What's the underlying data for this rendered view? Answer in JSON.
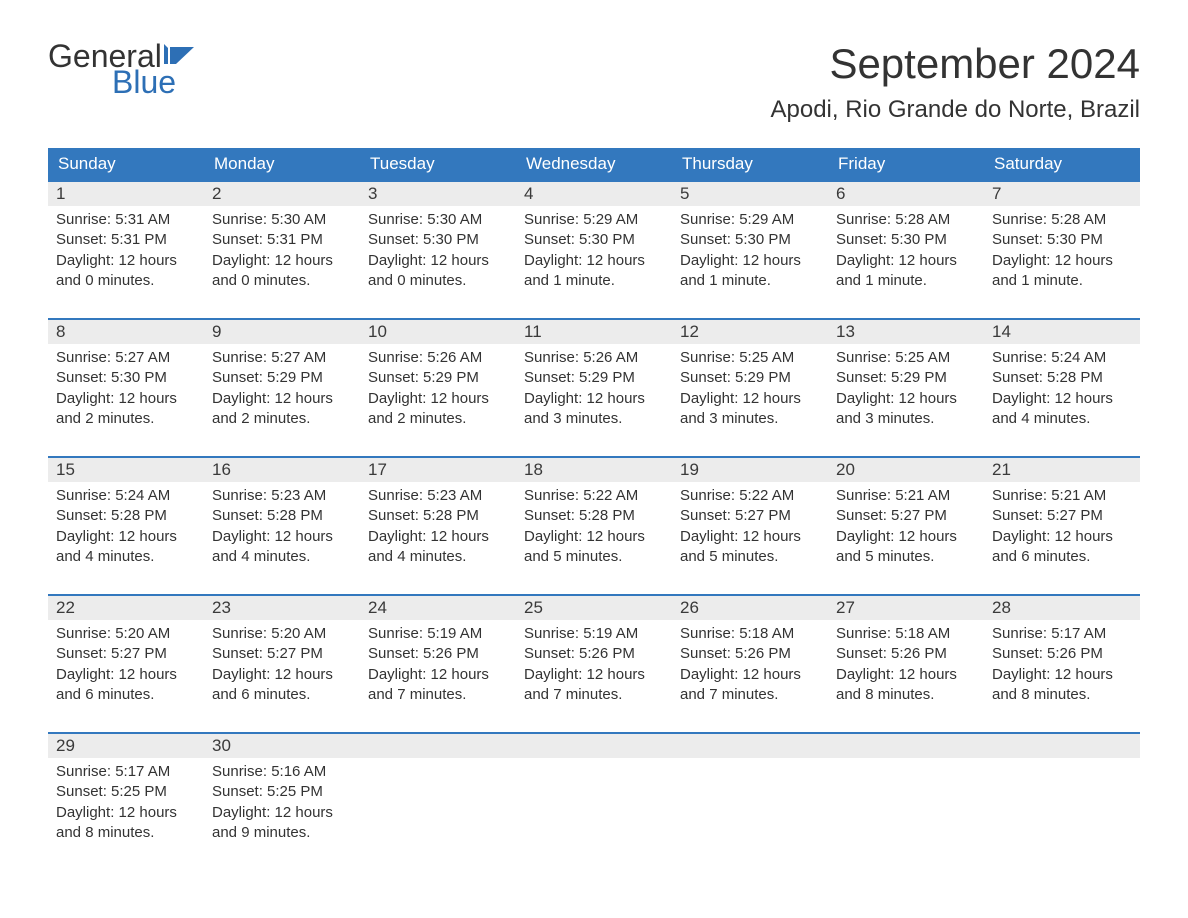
{
  "logo": {
    "text1": "General",
    "text2": "Blue",
    "flag_color": "#2d6fb5"
  },
  "title": "September 2024",
  "location": "Apodi, Rio Grande do Norte, Brazil",
  "colors": {
    "header_bg": "#3378be",
    "header_text": "#ffffff",
    "band_bg": "#ececec",
    "band_border": "#3378be",
    "body_text": "#333333",
    "page_bg": "#ffffff"
  },
  "typography": {
    "title_fontsize": 42,
    "location_fontsize": 24,
    "dayheader_fontsize": 17,
    "daynum_fontsize": 17,
    "body_fontsize": 15
  },
  "day_headers": [
    "Sunday",
    "Monday",
    "Tuesday",
    "Wednesday",
    "Thursday",
    "Friday",
    "Saturday"
  ],
  "weeks": [
    [
      {
        "num": "1",
        "sunrise": "Sunrise: 5:31 AM",
        "sunset": "Sunset: 5:31 PM",
        "daylight": "Daylight: 12 hours and 0 minutes."
      },
      {
        "num": "2",
        "sunrise": "Sunrise: 5:30 AM",
        "sunset": "Sunset: 5:31 PM",
        "daylight": "Daylight: 12 hours and 0 minutes."
      },
      {
        "num": "3",
        "sunrise": "Sunrise: 5:30 AM",
        "sunset": "Sunset: 5:30 PM",
        "daylight": "Daylight: 12 hours and 0 minutes."
      },
      {
        "num": "4",
        "sunrise": "Sunrise: 5:29 AM",
        "sunset": "Sunset: 5:30 PM",
        "daylight": "Daylight: 12 hours and 1 minute."
      },
      {
        "num": "5",
        "sunrise": "Sunrise: 5:29 AM",
        "sunset": "Sunset: 5:30 PM",
        "daylight": "Daylight: 12 hours and 1 minute."
      },
      {
        "num": "6",
        "sunrise": "Sunrise: 5:28 AM",
        "sunset": "Sunset: 5:30 PM",
        "daylight": "Daylight: 12 hours and 1 minute."
      },
      {
        "num": "7",
        "sunrise": "Sunrise: 5:28 AM",
        "sunset": "Sunset: 5:30 PM",
        "daylight": "Daylight: 12 hours and 1 minute."
      }
    ],
    [
      {
        "num": "8",
        "sunrise": "Sunrise: 5:27 AM",
        "sunset": "Sunset: 5:30 PM",
        "daylight": "Daylight: 12 hours and 2 minutes."
      },
      {
        "num": "9",
        "sunrise": "Sunrise: 5:27 AM",
        "sunset": "Sunset: 5:29 PM",
        "daylight": "Daylight: 12 hours and 2 minutes."
      },
      {
        "num": "10",
        "sunrise": "Sunrise: 5:26 AM",
        "sunset": "Sunset: 5:29 PM",
        "daylight": "Daylight: 12 hours and 2 minutes."
      },
      {
        "num": "11",
        "sunrise": "Sunrise: 5:26 AM",
        "sunset": "Sunset: 5:29 PM",
        "daylight": "Daylight: 12 hours and 3 minutes."
      },
      {
        "num": "12",
        "sunrise": "Sunrise: 5:25 AM",
        "sunset": "Sunset: 5:29 PM",
        "daylight": "Daylight: 12 hours and 3 minutes."
      },
      {
        "num": "13",
        "sunrise": "Sunrise: 5:25 AM",
        "sunset": "Sunset: 5:29 PM",
        "daylight": "Daylight: 12 hours and 3 minutes."
      },
      {
        "num": "14",
        "sunrise": "Sunrise: 5:24 AM",
        "sunset": "Sunset: 5:28 PM",
        "daylight": "Daylight: 12 hours and 4 minutes."
      }
    ],
    [
      {
        "num": "15",
        "sunrise": "Sunrise: 5:24 AM",
        "sunset": "Sunset: 5:28 PM",
        "daylight": "Daylight: 12 hours and 4 minutes."
      },
      {
        "num": "16",
        "sunrise": "Sunrise: 5:23 AM",
        "sunset": "Sunset: 5:28 PM",
        "daylight": "Daylight: 12 hours and 4 minutes."
      },
      {
        "num": "17",
        "sunrise": "Sunrise: 5:23 AM",
        "sunset": "Sunset: 5:28 PM",
        "daylight": "Daylight: 12 hours and 4 minutes."
      },
      {
        "num": "18",
        "sunrise": "Sunrise: 5:22 AM",
        "sunset": "Sunset: 5:28 PM",
        "daylight": "Daylight: 12 hours and 5 minutes."
      },
      {
        "num": "19",
        "sunrise": "Sunrise: 5:22 AM",
        "sunset": "Sunset: 5:27 PM",
        "daylight": "Daylight: 12 hours and 5 minutes."
      },
      {
        "num": "20",
        "sunrise": "Sunrise: 5:21 AM",
        "sunset": "Sunset: 5:27 PM",
        "daylight": "Daylight: 12 hours and 5 minutes."
      },
      {
        "num": "21",
        "sunrise": "Sunrise: 5:21 AM",
        "sunset": "Sunset: 5:27 PM",
        "daylight": "Daylight: 12 hours and 6 minutes."
      }
    ],
    [
      {
        "num": "22",
        "sunrise": "Sunrise: 5:20 AM",
        "sunset": "Sunset: 5:27 PM",
        "daylight": "Daylight: 12 hours and 6 minutes."
      },
      {
        "num": "23",
        "sunrise": "Sunrise: 5:20 AM",
        "sunset": "Sunset: 5:27 PM",
        "daylight": "Daylight: 12 hours and 6 minutes."
      },
      {
        "num": "24",
        "sunrise": "Sunrise: 5:19 AM",
        "sunset": "Sunset: 5:26 PM",
        "daylight": "Daylight: 12 hours and 7 minutes."
      },
      {
        "num": "25",
        "sunrise": "Sunrise: 5:19 AM",
        "sunset": "Sunset: 5:26 PM",
        "daylight": "Daylight: 12 hours and 7 minutes."
      },
      {
        "num": "26",
        "sunrise": "Sunrise: 5:18 AM",
        "sunset": "Sunset: 5:26 PM",
        "daylight": "Daylight: 12 hours and 7 minutes."
      },
      {
        "num": "27",
        "sunrise": "Sunrise: 5:18 AM",
        "sunset": "Sunset: 5:26 PM",
        "daylight": "Daylight: 12 hours and 8 minutes."
      },
      {
        "num": "28",
        "sunrise": "Sunrise: 5:17 AM",
        "sunset": "Sunset: 5:26 PM",
        "daylight": "Daylight: 12 hours and 8 minutes."
      }
    ],
    [
      {
        "num": "29",
        "sunrise": "Sunrise: 5:17 AM",
        "sunset": "Sunset: 5:25 PM",
        "daylight": "Daylight: 12 hours and 8 minutes."
      },
      {
        "num": "30",
        "sunrise": "Sunrise: 5:16 AM",
        "sunset": "Sunset: 5:25 PM",
        "daylight": "Daylight: 12 hours and 9 minutes."
      },
      {
        "empty": true
      },
      {
        "empty": true
      },
      {
        "empty": true
      },
      {
        "empty": true
      },
      {
        "empty": true
      }
    ]
  ]
}
